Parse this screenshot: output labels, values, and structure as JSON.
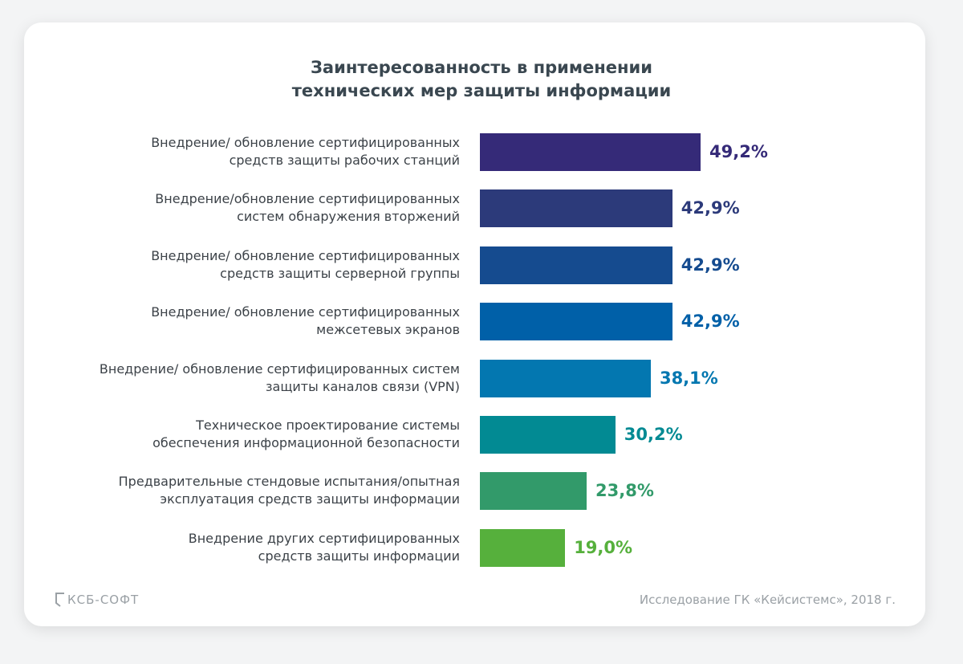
{
  "chart_data": {
    "type": "bar",
    "orientation": "horizontal",
    "title": "Заинтересованность в применении технических мер защиты информации",
    "title_lines": [
      "Заинтересованность в применении",
      "технических мер защиты информации"
    ],
    "categories": [
      [
        "Внедрение/ обновление сертифицированных",
        "средств защиты рабочих станций"
      ],
      [
        "Внедрение/обновление сертифицированных",
        "систем обнаружения вторжений"
      ],
      [
        "Внедрение/ обновление сертифицированных",
        "средств защиты серверной группы"
      ],
      [
        "Внедрение/ обновление сертифицированных",
        "межсетевых экранов"
      ],
      [
        "Внедрение/ обновление сертифицированных систем",
        "защиты каналов связи (VPN)"
      ],
      [
        "Техническое проектирование системы",
        "обеспечения информационной безопасности"
      ],
      [
        "Предварительные стендовые испытания/опытная",
        "эксплуатация средств защиты информации"
      ],
      [
        "Внедрение других сертифицированных",
        "средств защиты информации"
      ]
    ],
    "values": [
      49.2,
      42.9,
      42.9,
      42.9,
      38.1,
      30.2,
      23.8,
      19.0
    ],
    "value_labels": [
      "49,2%",
      "42,9%",
      "42,9%",
      "42,9%",
      "38,1%",
      "30,2%",
      "23,8%",
      "19,0%"
    ],
    "colors": [
      "#352a78",
      "#2c3a7a",
      "#154b8f",
      "#0060a8",
      "#0377b0",
      "#028a93",
      "#329a6a",
      "#56b03c"
    ],
    "xlabel": "",
    "ylabel": "",
    "grid": false,
    "legend": "none"
  },
  "footer": {
    "logo": "КСБ-СОФТ",
    "source": "Исследование ГК «Кейсистемс», 2018 г."
  }
}
